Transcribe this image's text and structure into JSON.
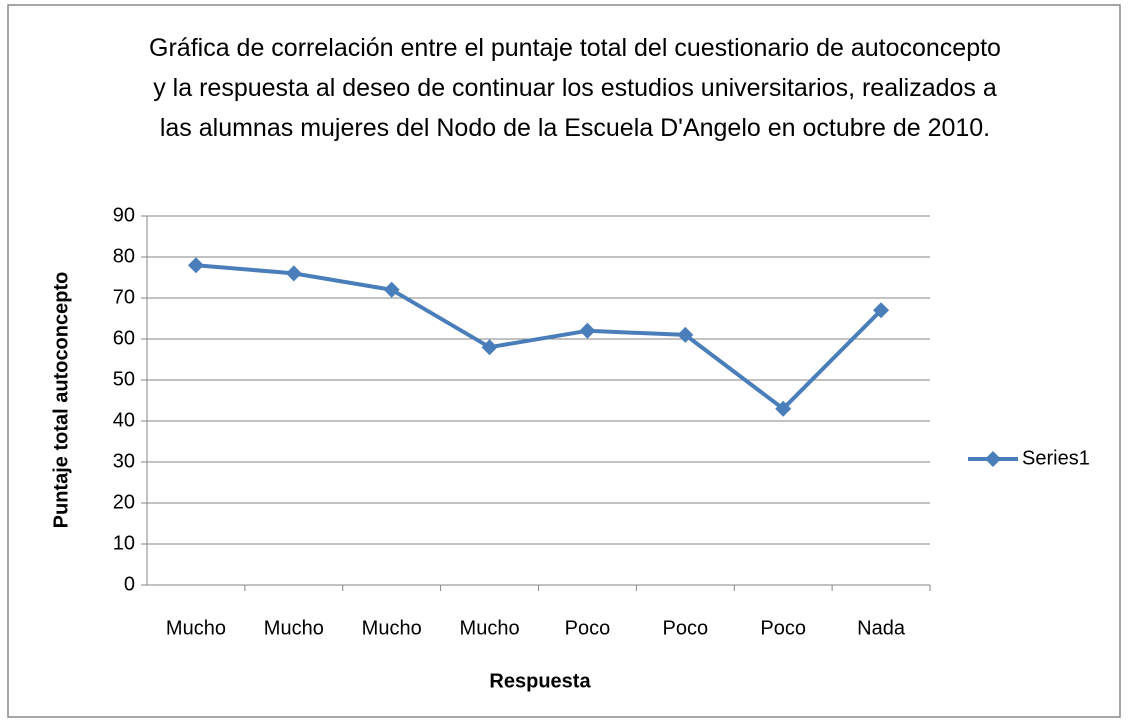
{
  "chart_data": {
    "type": "line",
    "title": "Gráfica de correlación entre el puntaje total del cuestionario de autoconcepto y la respuesta al deseo de continuar los estudios universitarios, realizados a las alumnas mujeres del Nodo de la Escuela D'Angelo en octubre de 2010.",
    "x_label": "Respuesta",
    "y_label": "Puntaje total autoconcepto",
    "categories": [
      "Mucho",
      "Mucho",
      "Mucho",
      "Mucho",
      "Poco",
      "Poco",
      "Poco",
      "Nada"
    ],
    "series": [
      {
        "name": "Series1",
        "color": "#4a7ebb",
        "values": [
          78,
          76,
          72,
          58,
          62,
          61,
          43,
          67
        ]
      }
    ],
    "ylim": [
      0,
      90
    ],
    "yticks": [
      0,
      10,
      20,
      30,
      40,
      50,
      60,
      70,
      80,
      90
    ],
    "grid": true,
    "legend": "right"
  }
}
